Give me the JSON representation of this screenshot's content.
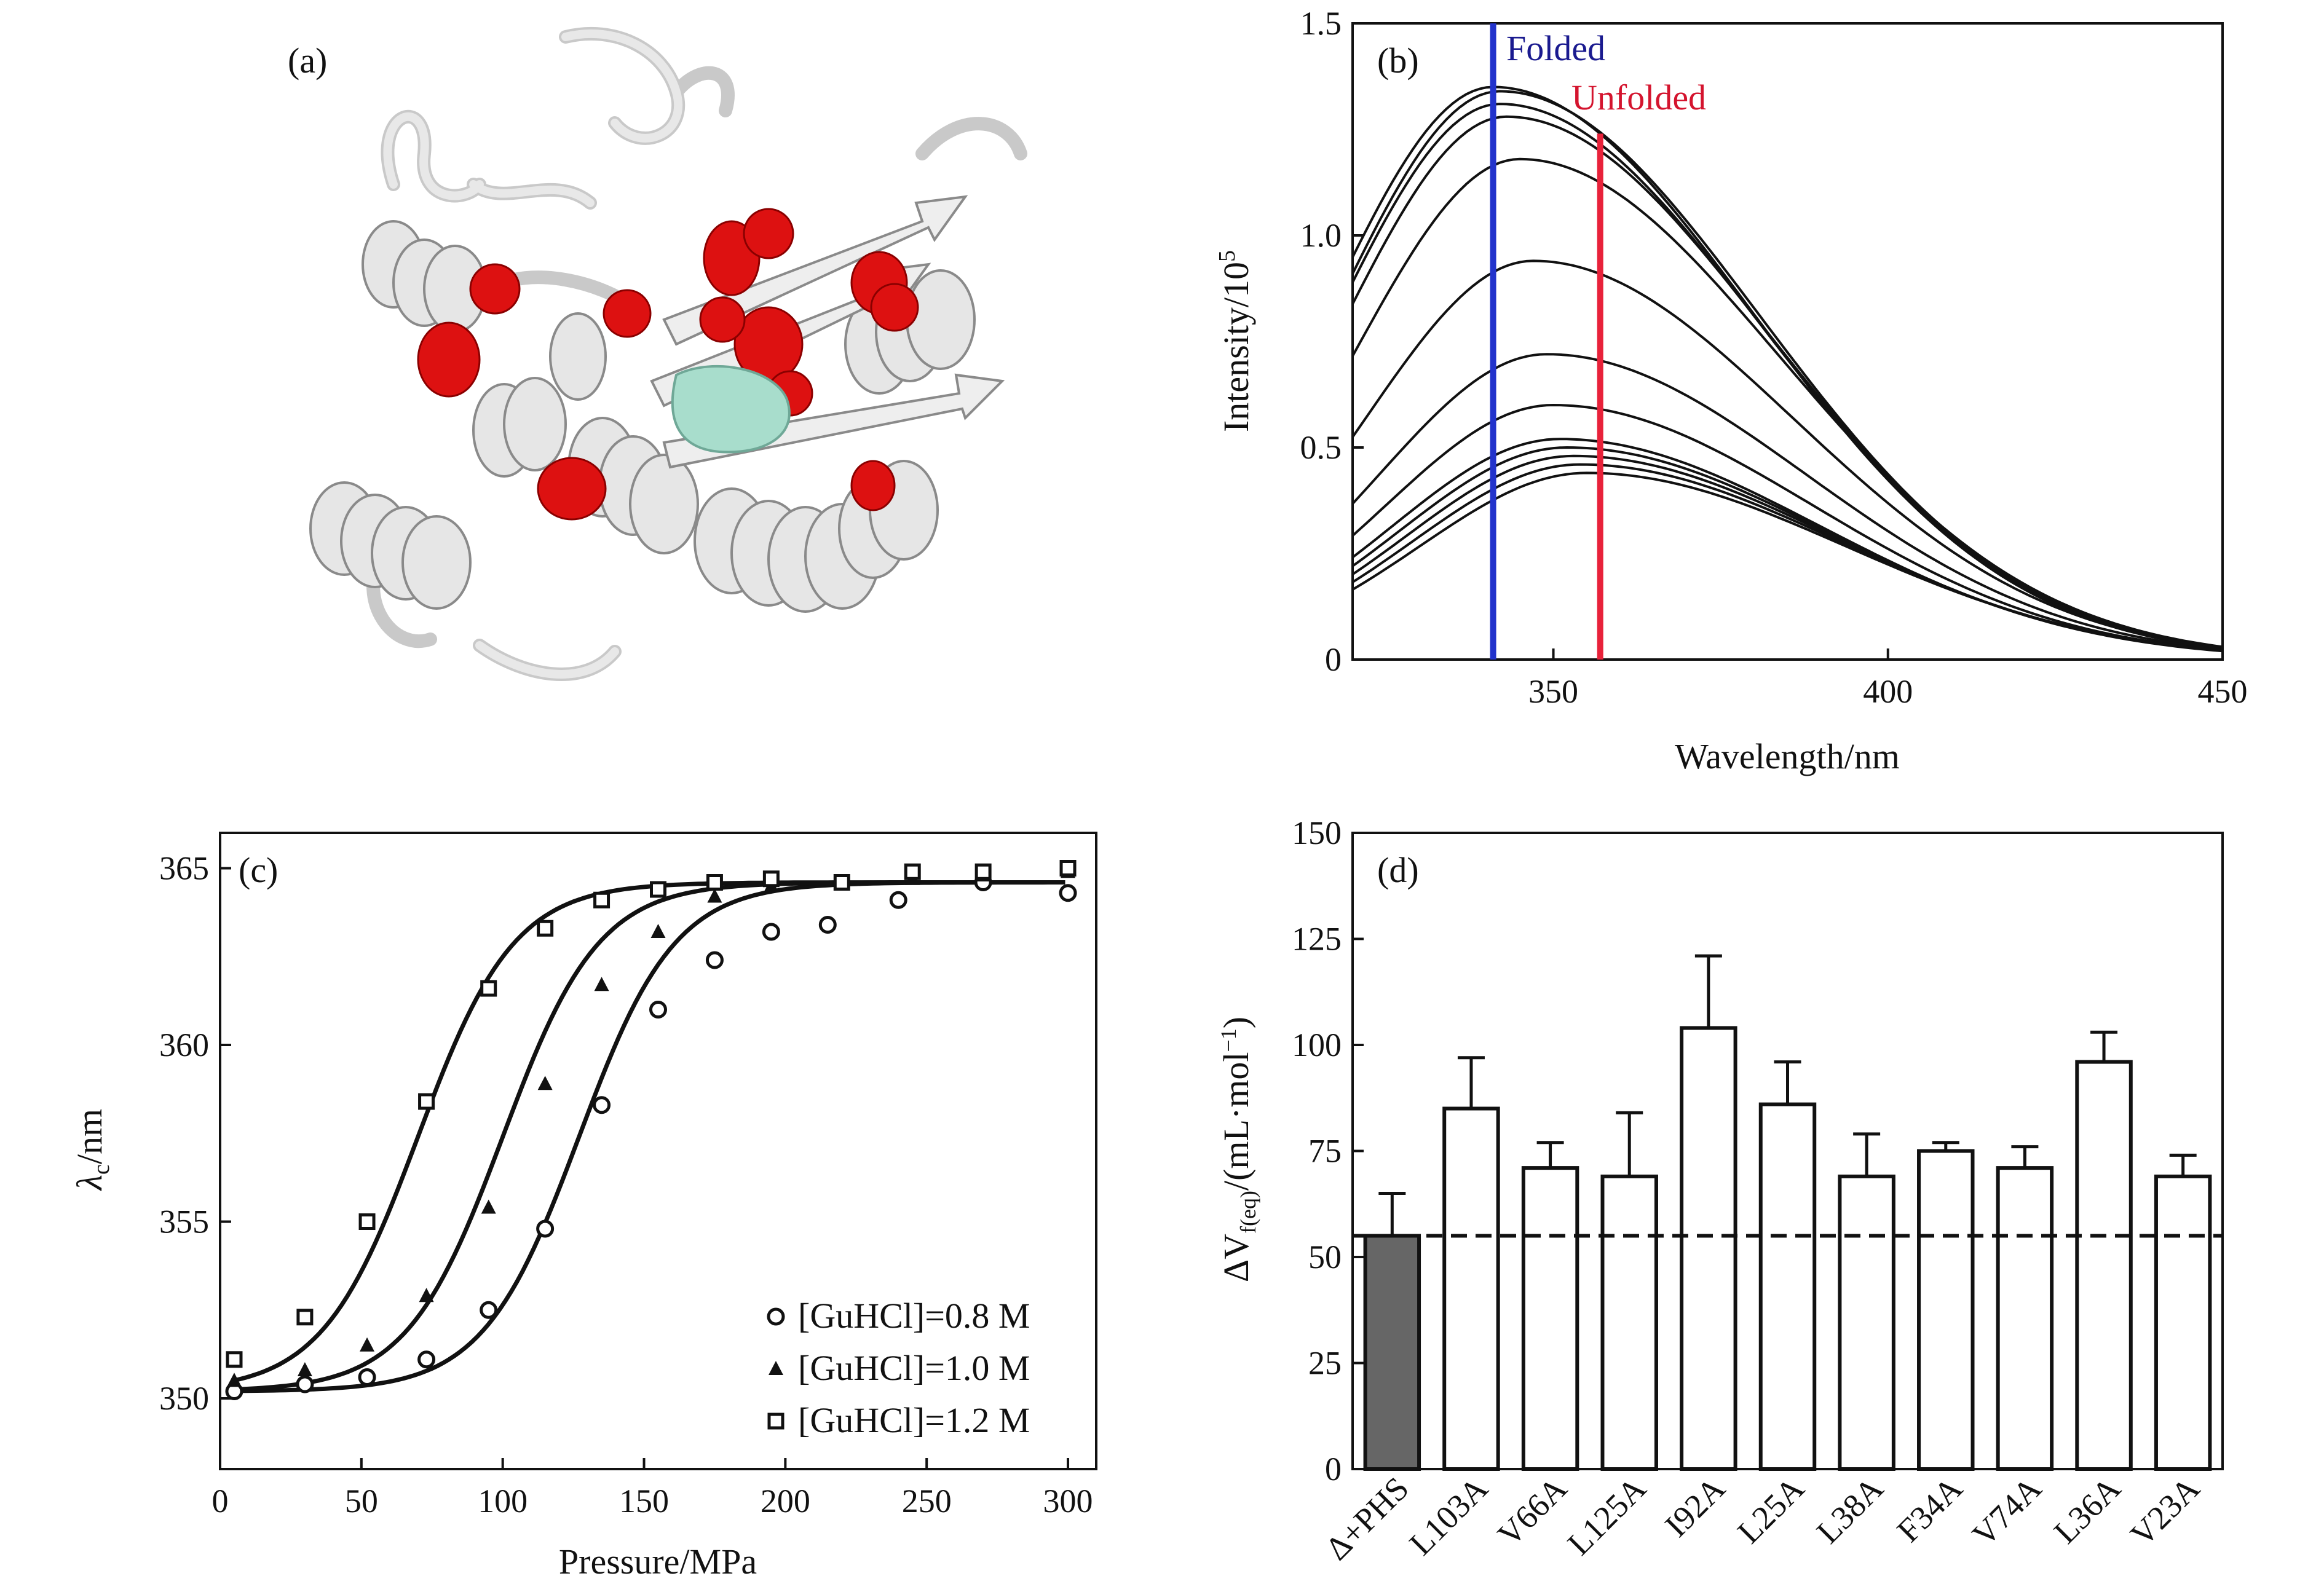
{
  "colors": {
    "ink": "#111111",
    "folded_line": "#2233cc",
    "unfolded_line": "#e8223a",
    "folded_text": "#1a1a8f",
    "unfolded_text": "#d4142e",
    "bar_fill_reference": "#666666",
    "bar_fill_mutant": "#ffffff",
    "protein_ribbon": "#e4e4e4",
    "protein_highlight": "#dd1111",
    "protein_ligand": "#a8ddcc"
  },
  "panel_a": {
    "label": "(a)",
    "description_icon": "protein-ribbon-structure"
  },
  "chart_data": [
    {
      "panel": "b",
      "label": "(b)",
      "type": "line",
      "xlabel": "Wavelength/nm",
      "ylabel_main": "Intensity/10",
      "ylabel_exp": "5",
      "xlim": [
        320,
        450
      ],
      "ylim": [
        0,
        1.5
      ],
      "xticks": [
        350,
        400,
        450
      ],
      "yticks": [
        0,
        0.5,
        1.0,
        1.5
      ],
      "ytick_labels": [
        "0",
        "0.5",
        "1.0",
        "1.5"
      ],
      "annotations": [
        {
          "text": "Folded",
          "x": 341,
          "color_key": "folded_text"
        },
        {
          "text": "Unfolded",
          "x": 357,
          "color_key": "unfolded_text"
        }
      ],
      "vlines": [
        {
          "x": 341,
          "ymax": 1.5,
          "color_key": "folded_line"
        },
        {
          "x": 357,
          "ymax": 1.24,
          "color_key": "unfolded_line"
        }
      ],
      "curve_width": 25,
      "series": [
        {
          "peak": 341,
          "amp": 1.35,
          "at450": 0.02
        },
        {
          "peak": 342,
          "amp": 1.34,
          "at450": 0.02
        },
        {
          "peak": 342,
          "amp": 1.31,
          "at450": 0.02
        },
        {
          "peak": 343,
          "amp": 1.28,
          "at450": 0.02
        },
        {
          "peak": 345,
          "amp": 1.18,
          "at450": 0.02
        },
        {
          "peak": 347,
          "amp": 0.94,
          "at450": 0.02
        },
        {
          "peak": 349,
          "amp": 0.72,
          "at450": 0.02
        },
        {
          "peak": 350,
          "amp": 0.6,
          "at450": 0.02
        },
        {
          "peak": 351,
          "amp": 0.52,
          "at450": 0.02
        },
        {
          "peak": 352,
          "amp": 0.5,
          "at450": 0.02
        },
        {
          "peak": 353,
          "amp": 0.48,
          "at450": 0.02
        },
        {
          "peak": 354,
          "amp": 0.46,
          "at450": 0.02
        },
        {
          "peak": 355,
          "amp": 0.44,
          "at450": 0.02
        }
      ]
    },
    {
      "panel": "c",
      "label": "(c)",
      "type": "scatter",
      "xlabel": "Pressure/MPa",
      "ylabel_main": "λ",
      "ylabel_sub": "c",
      "ylabel_rest": "/nm",
      "xlim": [
        0,
        310
      ],
      "ylim": [
        348,
        366
      ],
      "xticks": [
        0,
        50,
        100,
        150,
        200,
        250,
        300
      ],
      "yticks": [
        350,
        355,
        360,
        365
      ],
      "series": [
        {
          "name": "[GuHCl]=0.8 M",
          "marker": "circle",
          "fit_mid": 127,
          "fit_k": 17,
          "x": [
            5,
            30,
            52,
            73,
            95,
            115,
            135,
            155,
            175,
            195,
            215,
            240,
            270,
            300
          ],
          "y": [
            350.2,
            350.4,
            350.6,
            351.1,
            352.5,
            354.8,
            358.3,
            361.0,
            362.4,
            363.2,
            363.4,
            364.1,
            364.6,
            364.3
          ]
        },
        {
          "name": "[GuHCl]=1.0 M",
          "marker": "triangle",
          "fit_mid": 100,
          "fit_k": 17,
          "x": [
            5,
            30,
            52,
            73,
            95,
            115,
            135,
            155,
            175,
            195,
            220,
            245,
            270,
            300
          ],
          "y": [
            350.5,
            350.8,
            351.5,
            352.9,
            355.4,
            358.9,
            361.7,
            363.2,
            364.2,
            364.5,
            364.6,
            364.7,
            364.8,
            364.9
          ]
        },
        {
          "name": "[GuHCl]=1.2 M",
          "marker": "square",
          "fit_mid": 70,
          "fit_k": 17,
          "x": [
            5,
            30,
            52,
            73,
            95,
            115,
            135,
            155,
            175,
            195,
            220,
            245,
            270,
            300
          ],
          "y": [
            351.1,
            352.3,
            355.0,
            358.4,
            361.6,
            363.3,
            364.1,
            364.4,
            364.6,
            364.7,
            364.6,
            364.9,
            364.9,
            365.0
          ]
        }
      ],
      "fit_base": 350.2,
      "fit_top": 364.6
    },
    {
      "panel": "d",
      "label": "(d)",
      "type": "bar",
      "ylabel": "ΔV",
      "ylabel_sub": "f(eq)",
      "ylabel_rest": "/(mL·mol",
      "ylabel_sup": "−1",
      "ylabel_close": ")",
      "ylim": [
        0,
        150
      ],
      "yticks": [
        0,
        25,
        50,
        75,
        100,
        125,
        150
      ],
      "categories": [
        "Δ+PHS",
        "L103A",
        "V66A",
        "L125A",
        "I92A",
        "L25A",
        "L38A",
        "F34A",
        "V74A",
        "L36A",
        "V23A"
      ],
      "values": [
        55,
        85,
        71,
        69,
        104,
        86,
        69,
        75,
        71,
        96,
        69
      ],
      "errors": [
        10,
        12,
        6,
        15,
        17,
        10,
        10,
        2,
        5,
        7,
        5
      ],
      "reference_line": 55
    }
  ]
}
